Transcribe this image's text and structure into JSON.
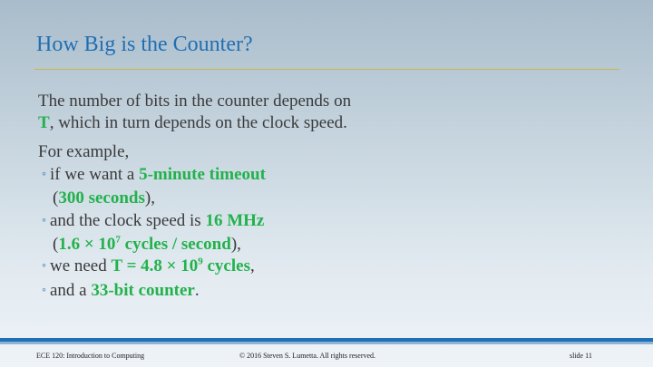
{
  "slide": {
    "title": "How Big is the Counter?",
    "para1_line1": "The number of bits in the counter depends on",
    "para1_T": "T",
    "para1_line2_rest": ", which in turn depends on the clock speed.",
    "para2": "For example,",
    "bullet_marker": "◦",
    "bullets": [
      {
        "pre": "if we want a ",
        "green": "5-minute timeout",
        "cont_open": "(",
        "cont_green": "300 seconds",
        "cont_close": "),"
      },
      {
        "pre": "and the clock speed is ",
        "green": "16 MHz",
        "cont_open": "(",
        "cont_green_a": "1.6 × 10",
        "cont_sup": "7",
        "cont_green_b": " cycles / second",
        "cont_close": "),"
      },
      {
        "pre": "we need ",
        "green_a": "T = 4.8 × 10",
        "sup": "9",
        "green_b": " cycles",
        "post": ","
      },
      {
        "pre": "and a ",
        "green": "33-bit counter",
        "post": "."
      }
    ]
  },
  "footer": {
    "course": "ECE 120: Introduction to Computing",
    "copyright": "© 2016 Steven S. Lumetta.  All rights reserved.",
    "slide_number": "slide 11"
  }
}
